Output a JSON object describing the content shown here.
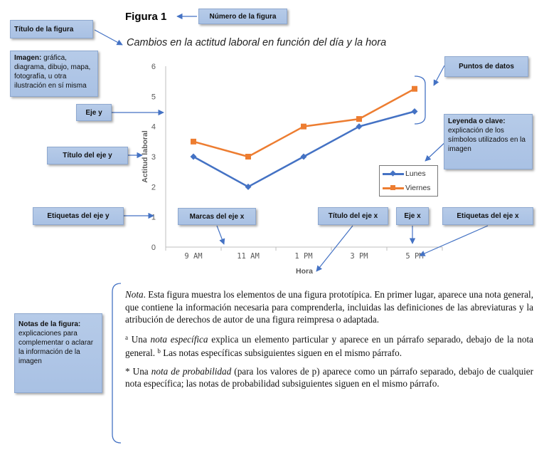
{
  "figure": {
    "number": "Figura 1",
    "title": "Cambios en la actitud laboral en función del día y la hora"
  },
  "chart_data": {
    "type": "line",
    "categories": [
      "9 AM",
      "11 AM",
      "1 PM",
      "3 PM",
      "5 PM"
    ],
    "series": [
      {
        "name": "Lunes",
        "values": [
          3,
          2,
          3,
          4,
          4.5
        ],
        "color": "#4472c4",
        "marker": "diamond"
      },
      {
        "name": "Viernes",
        "values": [
          3.5,
          3,
          4,
          4.25,
          5.25
        ],
        "color": "#ed7d31",
        "marker": "square"
      }
    ],
    "xlabel": "Hora",
    "ylabel": "Actitud laboral",
    "ylim": [
      0,
      6
    ],
    "yticks": [
      "0",
      "1",
      "2",
      "3",
      "4",
      "5",
      "6"
    ],
    "grid": false,
    "legend": "right"
  },
  "callouts": {
    "figure_number": "Número de la figura",
    "figure_title": "Título de la figura",
    "image_bold": "Imagen:",
    "image_text": " gráfica, diagrama, dibujo, mapa, fotografía, u otra ilustración en sí misma",
    "y_axis": "Eje y",
    "y_axis_title": "Título del eje y",
    "y_axis_labels": "Etiquetas del eje y",
    "x_ticks": "Marcas del eje x",
    "x_axis_title": "Título del eje x",
    "x_axis": "Eje x",
    "x_axis_labels": "Etiquetas del eje x",
    "data_points": "Puntos de datos",
    "legend_bold": "Leyenda o clave:",
    "legend_text": "explicación de los símbolos utilizados en la imagen",
    "notes_bold": "Notas de la figura:",
    "notes_text": "explicaciones para complementar o aclarar la información de la imagen"
  },
  "notes": {
    "general_label": "Nota",
    "general_text": ". Esta figura muestra los elementos de una figura prototípica. En primer lugar, aparece una nota general, que contiene la información necesaria para comprenderla, incluidas las definiciones de las abreviaturas y la atribución de derechos de autor de una figura reimpresa o adaptada.",
    "specific_mark_a": "a",
    "specific_pre": " Una ",
    "specific_term": "nota específica",
    "specific_post": " explica un elemento particular y aparece en un párrafo separado, debajo de la nota general. ",
    "specific_mark_b": "b",
    "specific_post2": " Las notas específicas subsiguientes siguen en el mismo párrafo.",
    "prob_mark": "*",
    "prob_pre": " Una ",
    "prob_term": "nota de probabilidad",
    "prob_post": " (para los valores de p) aparece como un párrafo separado, debajo de cualquier nota específica; las notas de probabilidad subsiguientes siguen en el mismo párrafo."
  }
}
